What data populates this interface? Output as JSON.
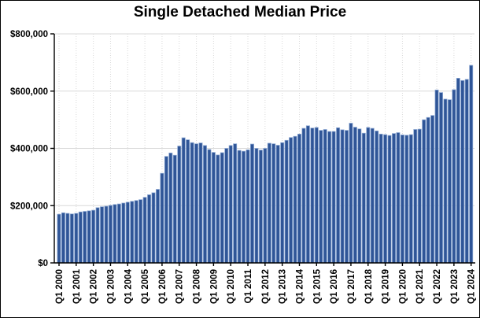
{
  "chart_data": {
    "type": "bar",
    "title": "Single Detached Median Price",
    "frequency": "quarterly",
    "series_start": "Q1 2000",
    "series_end": "Q1 2024",
    "values": [
      170000,
      175000,
      173000,
      171000,
      173000,
      178000,
      180000,
      182000,
      184000,
      193000,
      196000,
      198000,
      201000,
      204000,
      206000,
      209000,
      212000,
      215000,
      218000,
      221000,
      229000,
      238000,
      245000,
      257000,
      313000,
      372000,
      384000,
      376000,
      408000,
      437000,
      430000,
      420000,
      416000,
      419000,
      410000,
      396000,
      386000,
      377000,
      385000,
      400000,
      410000,
      416000,
      393000,
      390000,
      395000,
      415000,
      400000,
      394000,
      400000,
      418000,
      416000,
      411000,
      420000,
      428000,
      438000,
      442000,
      450000,
      470000,
      479000,
      471000,
      473000,
      463000,
      466000,
      459000,
      459000,
      472000,
      465000,
      463000,
      488000,
      474000,
      468000,
      453000,
      473000,
      470000,
      461000,
      450000,
      448000,
      445000,
      452000,
      455000,
      447000,
      446000,
      448000,
      466000,
      467000,
      500000,
      508000,
      515000,
      604000,
      595000,
      572000,
      570000,
      605000,
      645000,
      637000,
      641000,
      690000
    ],
    "x_tick_labels": [
      "Q1 2000",
      "Q1 2001",
      "Q1 2002",
      "Q1 2003",
      "Q1 2004",
      "Q1 2005",
      "Q1 2006",
      "Q1 2007",
      "Q1 2008",
      "Q1 2009",
      "Q1 2010",
      "Q1 2011",
      "Q1 2012",
      "Q1 2013",
      "Q1 2014",
      "Q1 2015",
      "Q1 2016",
      "Q1 2017",
      "Q1 2018",
      "Q1 2019",
      "Q1 2020",
      "Q1 2021",
      "Q1 2022",
      "Q1 2023",
      "Q1 2024"
    ],
    "x_tick_every": 4,
    "y_ticks": [
      0,
      200000,
      400000,
      600000,
      800000
    ],
    "y_tick_labels": [
      "$0",
      "$200,000",
      "$400,000",
      "$600,000",
      "$800,000"
    ],
    "ylim": [
      0,
      800000
    ],
    "legend": "none",
    "grid": {
      "horizontal": "solid",
      "vertical": "dotted-at-year-ticks"
    },
    "colors": {
      "bar": "#2f5597",
      "bar_edge": "#8ea9d4",
      "grid": "#d9d9d9",
      "axis": "#000000",
      "text": "#000000",
      "background": "#ffffff"
    }
  }
}
